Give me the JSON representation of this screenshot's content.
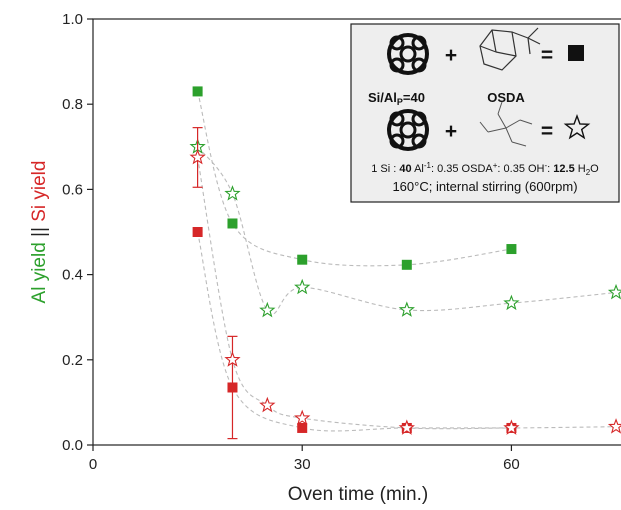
{
  "chart_data": {
    "type": "scatter",
    "xlabel": "Oven time (min.)",
    "ylabel_parts": [
      {
        "text": "Al yield",
        "color": "#2ca02c"
      },
      {
        "text": " || ",
        "color": "#222222"
      },
      {
        "text": "Si yield",
        "color": "#d62728"
      }
    ],
    "xlim": [
      0,
      76
    ],
    "ylim": [
      0,
      1.0
    ],
    "x_ticks": [
      0,
      30,
      60
    ],
    "x_tick_labels": [
      "0",
      "30",
      "60"
    ],
    "y_ticks": [
      0.0,
      0.2,
      0.4,
      0.6,
      0.8,
      1.0
    ],
    "y_tick_labels": [
      "0.0",
      "0.2",
      "0.4",
      "0.6",
      "0.8",
      "1.0"
    ],
    "grid": false,
    "legend": "none",
    "series": [
      {
        "marker": "square",
        "color": "#2ca02c",
        "x": [
          15,
          20,
          30,
          45,
          60
        ],
        "y": [
          0.83,
          0.52,
          0.435,
          0.423,
          0.46
        ]
      },
      {
        "marker": "star",
        "color": "#2ca02c",
        "x": [
          15,
          20,
          25,
          30,
          45,
          60,
          75
        ],
        "y": [
          0.7,
          0.59,
          0.316,
          0.37,
          0.317,
          0.333,
          0.358
        ]
      },
      {
        "marker": "square",
        "color": "#d62728",
        "x": [
          15,
          20,
          30,
          45,
          60
        ],
        "y": [
          0.5,
          0.135,
          0.04,
          0.04,
          0.04
        ],
        "err": [
          0,
          0.12,
          0,
          0,
          0
        ]
      },
      {
        "marker": "star",
        "color": "#d62728",
        "x": [
          15,
          20,
          25,
          30,
          45,
          60,
          75
        ],
        "y": [
          0.675,
          0.2,
          0.093,
          0.063,
          0.04,
          0.04,
          0.043
        ],
        "err": [
          0.07,
          0,
          0,
          0,
          0,
          0,
          0
        ]
      }
    ],
    "trend_color": "#bbbbbb",
    "inset": {
      "row1_labels": [
        "Si/Al",
        "P",
        "=40",
        "OSDA"
      ],
      "operators": [
        "+",
        "=",
        "+",
        "="
      ],
      "composition": [
        {
          "text": "1 Si : "
        },
        {
          "text": "40",
          "bold": true
        },
        {
          "text": " Al"
        },
        {
          "text": "-1",
          "sup": true
        },
        {
          "text": ": 0.35 OSDA"
        },
        {
          "text": "+",
          "sup": true
        },
        {
          "text": ": 0.35 OH"
        },
        {
          "text": "-",
          "sup": true
        },
        {
          "text": ": "
        },
        {
          "text": "12.5",
          "bold": true
        },
        {
          "text": " H"
        },
        {
          "text": "2",
          "sub": true
        },
        {
          "text": "O"
        }
      ],
      "conditions": "160°C; internal stirring (600rpm)"
    }
  }
}
